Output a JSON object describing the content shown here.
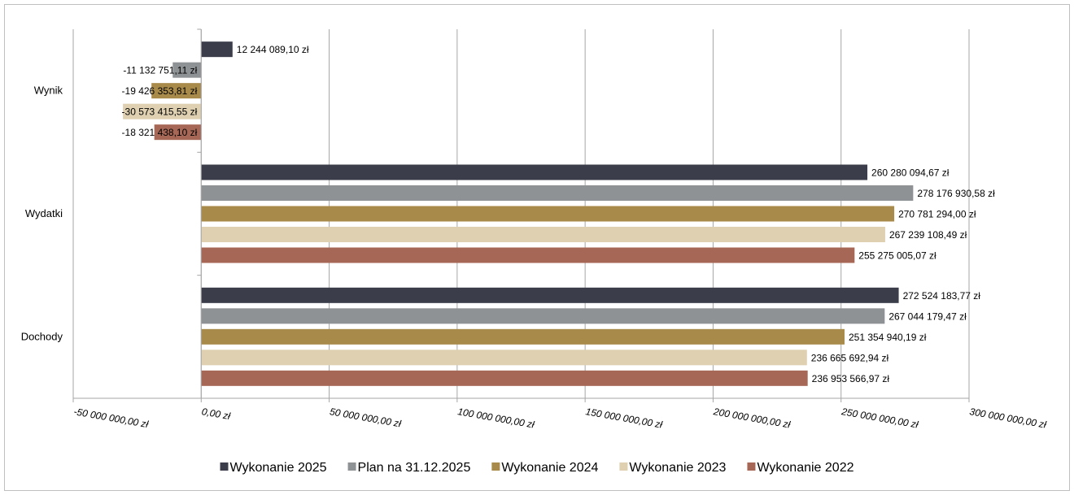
{
  "chart_data": {
    "type": "bar",
    "orientation": "horizontal",
    "categories": [
      "Wynik",
      "Wydatki",
      "Dochody"
    ],
    "series": [
      {
        "name": "Wykonanie 2025",
        "color": "#3b3e4a",
        "values": [
          12244089.1,
          260280094.67,
          272524183.77
        ],
        "labels": [
          "12 244 089,10 zł",
          "260 280 094,67 zł",
          "272 524 183,77 zł"
        ]
      },
      {
        "name": "Plan na 31.12.2025",
        "color": "#8f9295",
        "values": [
          -11132751.11,
          278176930.58,
          267044179.47
        ],
        "labels": [
          "-11 132 751,11 zł",
          "278 176 930,58 zł",
          "267 044 179,47 zł"
        ]
      },
      {
        "name": "Wykonanie 2024",
        "color": "#a88a4a",
        "values": [
          -19426353.81,
          270781294.0,
          251354940.19
        ],
        "labels": [
          "-19 426 353,81 zł",
          "270 781 294,00 zł",
          "251 354 940,19 zł"
        ]
      },
      {
        "name": "Wykonanie 2023",
        "color": "#ded0b0",
        "values": [
          -30573415.55,
          267239108.49,
          236665692.94
        ],
        "labels": [
          "-30 573 415,55 zł",
          "267 239 108,49 zł",
          "236 665 692,94 zł"
        ]
      },
      {
        "name": "Wykonanie 2022",
        "color": "#a76756",
        "values": [
          -18321438.1,
          255275005.07,
          236953566.97
        ],
        "labels": [
          "-18 321 438,10 zł",
          "255 275 005,07 zł",
          "236 953 566,97 zł"
        ]
      }
    ],
    "xlim": [
      -50000000,
      300000000
    ],
    "x_ticks": [
      -50000000,
      0,
      50000000,
      100000000,
      150000000,
      200000000,
      250000000,
      300000000
    ],
    "x_tick_labels": [
      "-50 000 000,00 zł",
      "0,00 zł",
      "50 000 000,00 zł",
      "100 000 000,00 zł",
      "150 000 000,00 zł",
      "200 000 000,00 zł",
      "250 000 000,00 zł",
      "300 000 000,00 zł"
    ],
    "grid": true,
    "legend_position": "bottom"
  }
}
